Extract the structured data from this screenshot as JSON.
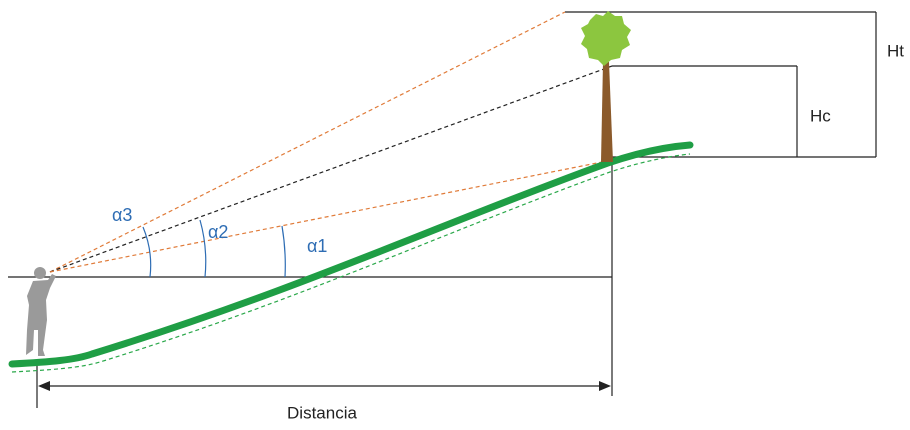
{
  "labels": {
    "alpha3": "α3",
    "alpha2": "α2",
    "alpha1": "α1",
    "ht": "Ht",
    "hc": "Hc",
    "distance": "Distancia"
  }
}
